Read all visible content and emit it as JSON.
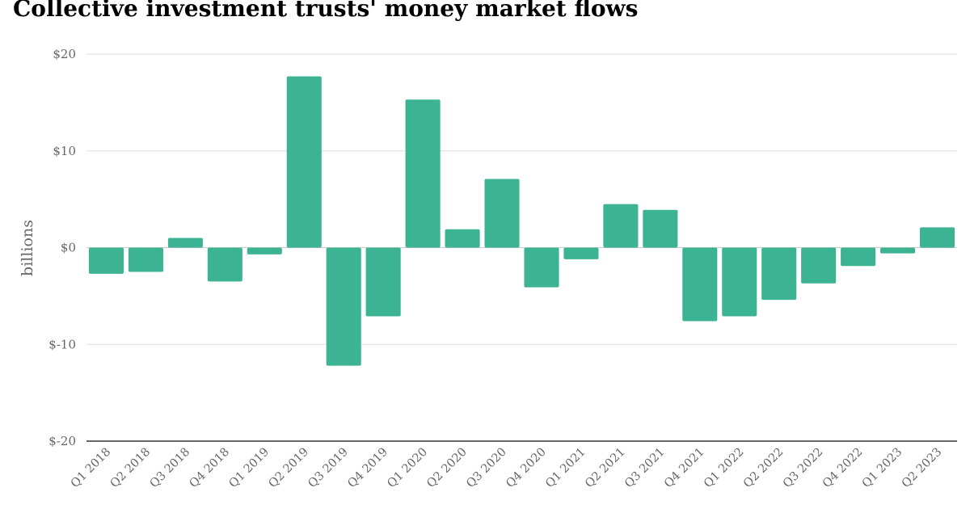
{
  "chart_data": {
    "type": "bar",
    "title": "Collective investment trusts' money market flows",
    "ylabel": "billions",
    "xlabel": "",
    "ylim": [
      -20,
      20
    ],
    "yticks": [
      20,
      10,
      0,
      -10,
      -20
    ],
    "ytick_labels": [
      "$20",
      "$10",
      "$0",
      "$-10",
      "$-20"
    ],
    "grid": true,
    "bar_color": "#3cb493",
    "categories": [
      "Q1 2018",
      "Q2 2018",
      "Q3 2018",
      "Q4 2018",
      "Q1 2019",
      "Q2 2019",
      "Q3 2019",
      "Q4 2019",
      "Q1 2020",
      "Q2 2020",
      "Q3 2020",
      "Q4 2020",
      "Q1 2021",
      "Q2 2021",
      "Q3 2021",
      "Q4 2021",
      "Q1 2022",
      "Q2 2022",
      "Q3 2022",
      "Q4 2022",
      "Q1 2023",
      "Q2 2023"
    ],
    "values": [
      -2.7,
      -2.5,
      1.0,
      -3.5,
      -0.7,
      17.7,
      -12.2,
      -7.1,
      15.3,
      1.9,
      7.1,
      -4.1,
      -1.2,
      4.5,
      3.9,
      -7.6,
      -7.1,
      -5.4,
      -3.7,
      -1.9,
      -0.6,
      2.1
    ]
  }
}
